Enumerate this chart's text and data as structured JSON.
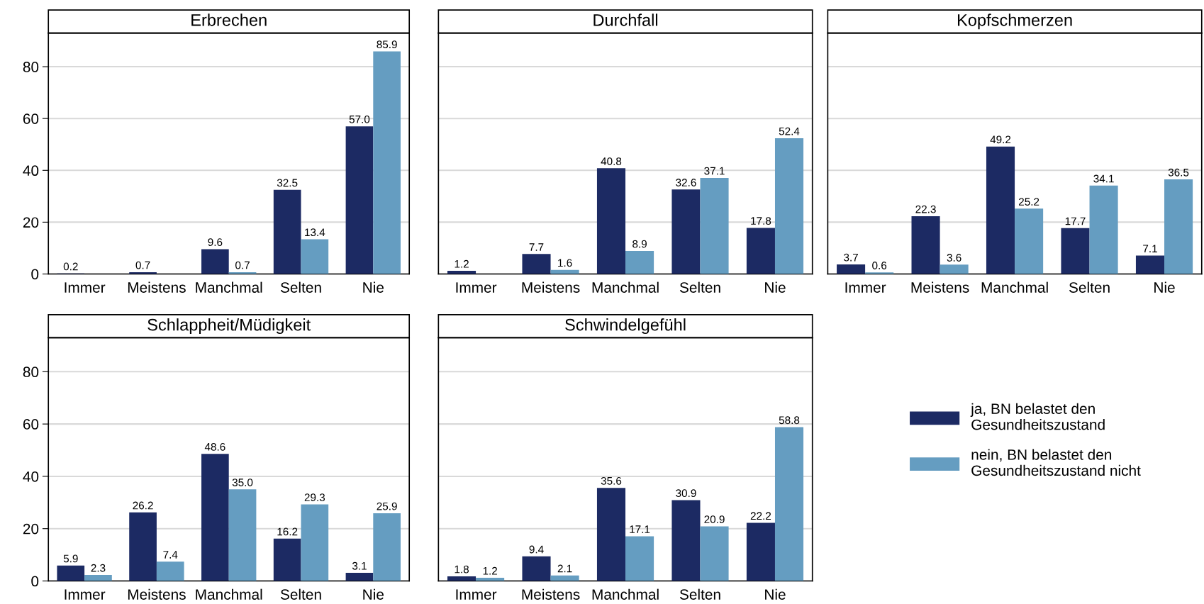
{
  "chart_data": [
    {
      "type": "bar",
      "title": "Erbrechen",
      "categories": [
        "Immer",
        "Meistens",
        "Manchmal",
        "Selten",
        "Nie"
      ],
      "ylim": [
        0,
        93
      ],
      "yticks": [
        0,
        20,
        40,
        60,
        80
      ],
      "grid": "y",
      "data_labels": true,
      "series": [
        {
          "color": "#1c2a63",
          "values": [
            0.2,
            0.7,
            9.6,
            32.5,
            57.0
          ],
          "value_labels": [
            "0.2",
            "0.7",
            "9.6",
            "32.5",
            "57.0"
          ]
        },
        {
          "color": "#659dc1",
          "values": [
            null,
            null,
            0.7,
            13.4,
            85.9
          ]
        }
      ]
    },
    {
      "type": "bar",
      "title": "Durchfall",
      "categories": [
        "Immer",
        "Meistens",
        "Manchmal",
        "Selten",
        "Nie"
      ],
      "ylim": [
        0,
        93
      ],
      "yticks": [
        0,
        20,
        40,
        60,
        80
      ],
      "grid": "y",
      "data_labels": true,
      "tick_labels": "x",
      "series": [
        {
          "color": "#1c2a63",
          "values": [
            1.2,
            7.7,
            40.8,
            32.6,
            17.8
          ]
        },
        {
          "color": "#659dc1",
          "values": [
            null,
            1.6,
            8.9,
            37.1,
            52.4
          ]
        }
      ]
    },
    {
      "type": "bar",
      "title": "Kopfschmerzen",
      "categories": [
        "Immer",
        "Meistens",
        "Manchmal",
        "Selten",
        "Nie"
      ],
      "ylim": [
        0,
        93
      ],
      "yticks": [
        0,
        20,
        40,
        60,
        80
      ],
      "grid": "y",
      "data_labels": true,
      "tick_labels": "x",
      "series": [
        {
          "color": "#1c2a63",
          "values": [
            3.7,
            22.3,
            49.2,
            17.7,
            7.1
          ]
        },
        {
          "color": "#659dc1",
          "values": [
            0.6,
            3.6,
            25.2,
            34.1,
            36.5
          ]
        }
      ]
    },
    {
      "type": "bar",
      "title": "Schlappheit/Müdigkeit",
      "categories": [
        "Immer",
        "Meistens",
        "Manchmal",
        "Selten",
        "Nie"
      ],
      "ylim": [
        0,
        93
      ],
      "yticks": [
        0,
        20,
        40,
        60,
        80
      ],
      "grid": "y",
      "data_labels": true,
      "series": [
        {
          "color": "#1c2a63",
          "values": [
            5.9,
            26.2,
            48.6,
            16.2,
            3.1
          ]
        },
        {
          "color": "#659dc1",
          "values": [
            2.3,
            7.4,
            35.0,
            29.3,
            25.9
          ],
          "value_labels": [
            "2.3",
            "7.4",
            "35.0",
            "29.3",
            "25.9"
          ]
        }
      ]
    },
    {
      "type": "bar",
      "title": "Schwindelgefühl",
      "categories": [
        "Immer",
        "Meistens",
        "Manchmal",
        "Selten",
        "Nie"
      ],
      "ylim": [
        0,
        93
      ],
      "yticks": [
        0,
        20,
        40,
        60,
        80
      ],
      "grid": "y",
      "data_labels": true,
      "tick_labels": "x",
      "legend": "right",
      "series": [
        {
          "name": "ja, BN belastet den\nGesundheitszustand",
          "color": "#1c2a63",
          "values": [
            1.8,
            9.4,
            35.6,
            30.9,
            22.2
          ]
        },
        {
          "name": "nein, BN belastet den\nGesundheitszustand nicht",
          "color": "#659dc1",
          "values": [
            1.2,
            2.1,
            17.1,
            20.9,
            58.8
          ]
        }
      ]
    }
  ]
}
